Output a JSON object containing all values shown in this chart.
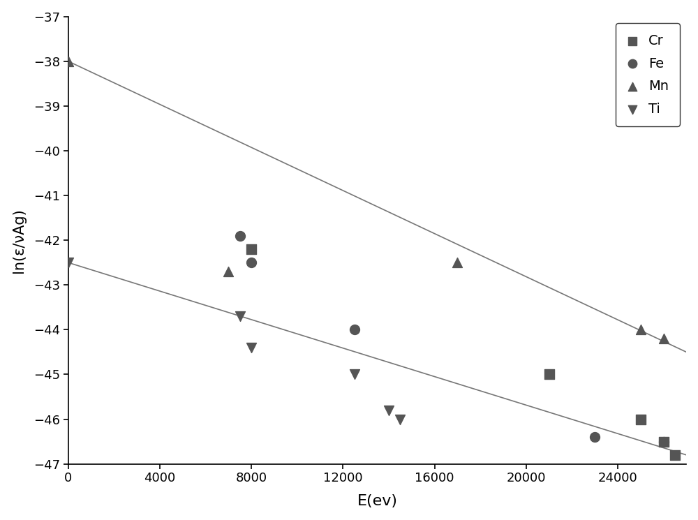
{
  "cr_x": [
    8000,
    21000,
    25000,
    26000,
    26500
  ],
  "cr_y": [
    -42.2,
    -45.0,
    -46.0,
    -46.5,
    -46.8
  ],
  "fe_x": [
    7500,
    8000,
    12500,
    23000,
    26000
  ],
  "fe_y": [
    -41.9,
    -42.5,
    -44.0,
    -46.4,
    -46.5
  ],
  "mn_x": [
    0,
    7000,
    17000,
    25000,
    26000
  ],
  "mn_y": [
    -38.0,
    -42.7,
    -42.5,
    -44.0,
    -44.2
  ],
  "ti_x": [
    0,
    7500,
    8000,
    12500,
    14000,
    14500
  ],
  "ti_y": [
    -42.5,
    -43.7,
    -44.4,
    -45.0,
    -45.8,
    -46.0
  ],
  "line1_x": [
    0,
    27000
  ],
  "line1_y": [
    -38.0,
    -44.5
  ],
  "line2_x": [
    0,
    27000
  ],
  "line2_y": [
    -42.5,
    -46.8
  ],
  "xlabel": "E(ev)",
  "ylabel": "ln(ε/νAg)",
  "xlim": [
    0,
    27000
  ],
  "ylim": [
    -47,
    -37
  ],
  "xticks": [
    0,
    4000,
    8000,
    12000,
    16000,
    20000,
    24000
  ],
  "yticks": [
    -47,
    -46,
    -45,
    -44,
    -43,
    -42,
    -41,
    -40,
    -39,
    -38,
    -37
  ],
  "marker_color": "#555555",
  "line_color": "#777777",
  "marker_size": 100,
  "legend_labels": [
    "Cr",
    "Fe",
    "Mn",
    "Ti"
  ],
  "background_color": "#ffffff"
}
